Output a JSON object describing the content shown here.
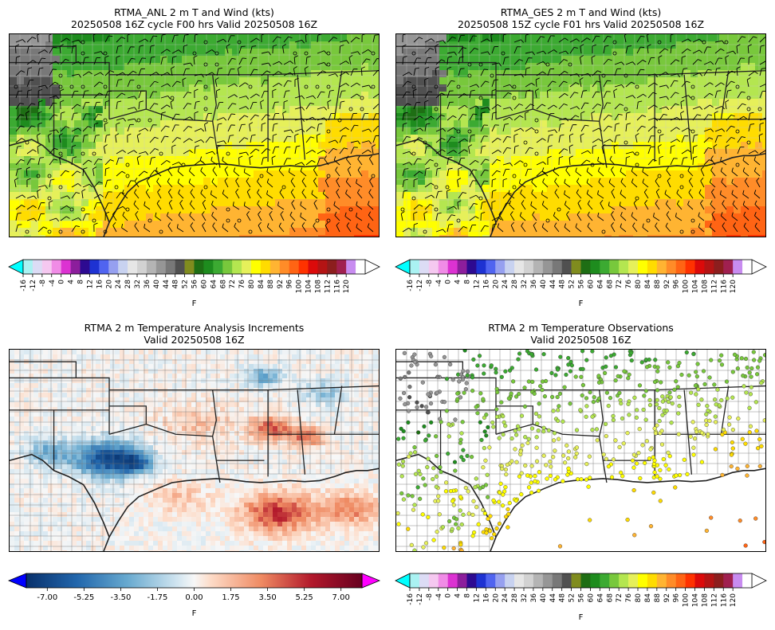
{
  "panels": [
    {
      "title_line1": "RTMA_ANL 2 m T and Wind (kts)",
      "title_line2": "20250508 16Z cycle F00 hrs Valid 20250508 16Z",
      "field": "temperature-wind"
    },
    {
      "title_line1": "RTMA_GES 2 m T and Wind (kts)",
      "title_line2": "20250508 15Z cycle F01 hrs Valid 20250508 16Z",
      "field": "temperature-wind"
    },
    {
      "title_line1": "RTMA 2 m Temperature Analysis Increments",
      "title_line2": "Valid 20250508 16Z",
      "field": "increments"
    },
    {
      "title_line1": "RTMA 2 m Temperature Observations",
      "title_line2": "Valid 20250508 16Z",
      "field": "observations"
    }
  ],
  "temp_colorbar": {
    "unit": "F",
    "ticks": [
      "-16",
      "-12",
      "-8",
      "-4",
      "0",
      "4",
      "8",
      "12",
      "16",
      "20",
      "24",
      "28",
      "32",
      "36",
      "40",
      "44",
      "48",
      "52",
      "56",
      "60",
      "64",
      "68",
      "72",
      "76",
      "80",
      "84",
      "88",
      "92",
      "96",
      "100",
      "104",
      "108",
      "112",
      "116",
      "120"
    ],
    "colors": [
      "#aaf2f2",
      "#dcdcf5",
      "#f5c8f0",
      "#f08ce6",
      "#dc32d2",
      "#8c1e9c",
      "#2d0a91",
      "#1e32d2",
      "#5064f0",
      "#96a0f0",
      "#c8d2f0",
      "#e6e6e6",
      "#d2d2d2",
      "#b4b4b4",
      "#969696",
      "#787878",
      "#505050",
      "#808c1e",
      "#1e6e14",
      "#1e8c1e",
      "#3caa32",
      "#78c83c",
      "#b4e650",
      "#e6f05a",
      "#ffff00",
      "#ffdc00",
      "#ffb432",
      "#ff8c28",
      "#ff6414",
      "#ff3200",
      "#dc0a0a",
      "#b41414",
      "#8c1e1e",
      "#a02050",
      "#c88cf0",
      "#ffffff"
    ],
    "under_color": "#00ffff",
    "over_color": "#ffffff"
  },
  "incr_colorbar": {
    "unit": "F",
    "ticks": [
      "-7.00",
      "-5.25",
      "-3.50",
      "-1.75",
      "0.00",
      "1.75",
      "3.50",
      "5.25",
      "7.00"
    ],
    "min": -8,
    "max": 8,
    "under_color": "#0000ff",
    "over_color": "#ff00ff"
  }
}
